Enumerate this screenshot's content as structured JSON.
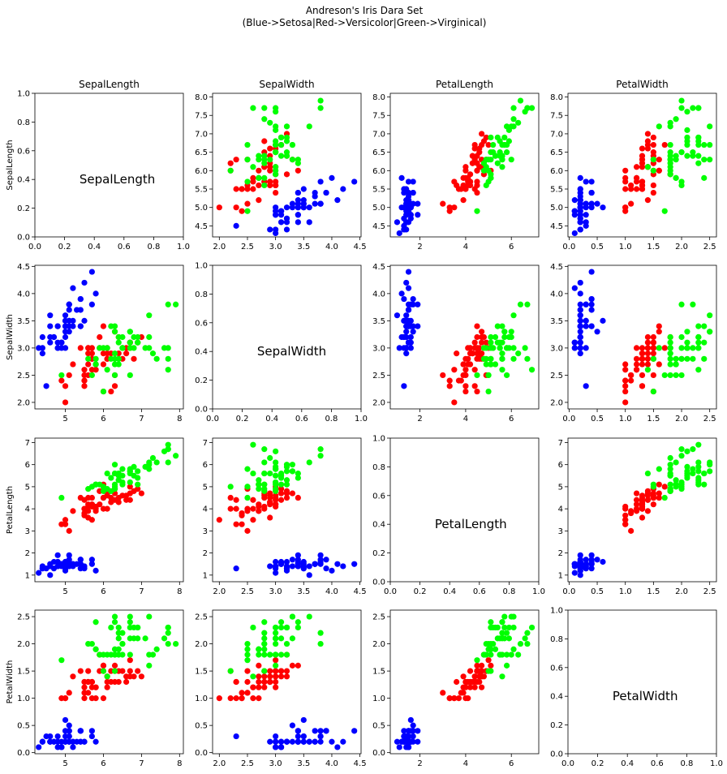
{
  "chart_data": {
    "type": "scatter",
    "layout": "pairplot",
    "title": [
      "Andreson's Iris Dara Set",
      "(Blue->Setosa|Red->Versicolor|Green->Virginical)"
    ],
    "features": [
      "SepalLength",
      "SepalWidth",
      "PetalLength",
      "PetalWidth"
    ],
    "colors": {
      "setosa": "#0000ff",
      "versicolor": "#ff0000",
      "virginica": "#00ff00"
    },
    "ranges": {
      "SepalLength": {
        "lim": [
          4.2,
          8.1
        ],
        "ticks": [
          5,
          6,
          7,
          8
        ],
        "labels": [
          "5",
          "6",
          "7",
          "8"
        ]
      },
      "SepalWidth": {
        "lim": [
          1.88,
          4.52
        ],
        "ticks": [
          2.0,
          2.5,
          3.0,
          3.5,
          4.0,
          4.5
        ],
        "labels": [
          "2.0",
          "2.5",
          "3.0",
          "3.5",
          "4.0",
          "4.5"
        ]
      },
      "PetalLength": {
        "lim": [
          0.7,
          7.2
        ],
        "ticks": [
          2,
          4,
          6
        ],
        "labels": [
          "2",
          "4",
          "6"
        ]
      },
      "PetalWidth": {
        "lim": [
          -0.02,
          2.62
        ],
        "ticks": [
          0.0,
          0.5,
          1.0,
          1.5,
          2.0,
          2.5
        ],
        "labels": [
          "0.0",
          "0.5",
          "1.0",
          "1.5",
          "2.0",
          "2.5"
        ]
      }
    },
    "row_ranges": {
      "SepalLength": {
        "lim": [
          4.2,
          8.1
        ],
        "ticks": [
          4.5,
          5.0,
          5.5,
          6.0,
          6.5,
          7.0,
          7.5,
          8.0
        ],
        "labels": [
          "4.5",
          "5.0",
          "5.5",
          "6.0",
          "6.5",
          "7.0",
          "7.5",
          "8.0"
        ]
      },
      "SepalWidth": {
        "lim": [
          1.88,
          4.52
        ],
        "ticks": [
          2.0,
          2.5,
          3.0,
          3.5,
          4.0,
          4.5
        ],
        "labels": [
          "2.0",
          "2.5",
          "3.0",
          "3.5",
          "4.0",
          "4.5"
        ]
      },
      "PetalLength": {
        "lim": [
          0.7,
          7.2
        ],
        "ticks": [
          1,
          2,
          3,
          4,
          5,
          6,
          7
        ],
        "labels": [
          "1",
          "2",
          "3",
          "4",
          "5",
          "6",
          "7"
        ]
      },
      "PetalWidth": {
        "lim": [
          -0.02,
          2.62
        ],
        "ticks": [
          0.0,
          0.5,
          1.0,
          1.5,
          2.0,
          2.5
        ],
        "labels": [
          "0.0",
          "0.5",
          "1.0",
          "1.5",
          "2.0",
          "2.5"
        ]
      }
    },
    "diagonal_ticks": {
      "values": [
        0.0,
        0.2,
        0.4,
        0.6,
        0.8,
        1.0
      ],
      "labels": [
        "0.0",
        "0.2",
        "0.4",
        "0.6",
        "0.8",
        "1.0"
      ]
    },
    "samples": {
      "setosa": [
        [
          5.1,
          3.5,
          1.4,
          0.2
        ],
        [
          4.9,
          3.0,
          1.4,
          0.2
        ],
        [
          4.7,
          3.2,
          1.3,
          0.2
        ],
        [
          4.6,
          3.1,
          1.5,
          0.2
        ],
        [
          5.0,
          3.6,
          1.4,
          0.2
        ],
        [
          5.4,
          3.9,
          1.7,
          0.4
        ],
        [
          4.6,
          3.4,
          1.4,
          0.3
        ],
        [
          5.0,
          3.4,
          1.5,
          0.2
        ],
        [
          4.4,
          2.9,
          1.4,
          0.2
        ],
        [
          4.9,
          3.1,
          1.5,
          0.1
        ],
        [
          5.4,
          3.7,
          1.5,
          0.2
        ],
        [
          4.8,
          3.4,
          1.6,
          0.2
        ],
        [
          4.8,
          3.0,
          1.4,
          0.1
        ],
        [
          4.3,
          3.0,
          1.1,
          0.1
        ],
        [
          5.8,
          4.0,
          1.2,
          0.2
        ],
        [
          5.7,
          4.4,
          1.5,
          0.4
        ],
        [
          5.4,
          3.9,
          1.3,
          0.4
        ],
        [
          5.1,
          3.5,
          1.4,
          0.3
        ],
        [
          5.7,
          3.8,
          1.7,
          0.3
        ],
        [
          5.1,
          3.8,
          1.5,
          0.3
        ],
        [
          5.4,
          3.4,
          1.7,
          0.2
        ],
        [
          5.1,
          3.7,
          1.5,
          0.4
        ],
        [
          4.6,
          3.6,
          1.0,
          0.2
        ],
        [
          5.1,
          3.3,
          1.7,
          0.5
        ],
        [
          4.8,
          3.4,
          1.9,
          0.2
        ],
        [
          5.0,
          3.0,
          1.6,
          0.2
        ],
        [
          5.0,
          3.4,
          1.6,
          0.4
        ],
        [
          5.2,
          3.5,
          1.5,
          0.2
        ],
        [
          5.2,
          3.4,
          1.4,
          0.2
        ],
        [
          4.7,
          3.2,
          1.6,
          0.2
        ],
        [
          4.8,
          3.1,
          1.6,
          0.2
        ],
        [
          5.4,
          3.4,
          1.5,
          0.4
        ],
        [
          5.2,
          4.1,
          1.5,
          0.1
        ],
        [
          5.5,
          4.2,
          1.4,
          0.2
        ],
        [
          4.9,
          3.1,
          1.5,
          0.1
        ],
        [
          5.0,
          3.2,
          1.2,
          0.2
        ],
        [
          5.5,
          3.5,
          1.3,
          0.2
        ],
        [
          4.9,
          3.1,
          1.5,
          0.1
        ],
        [
          4.4,
          3.0,
          1.3,
          0.2
        ],
        [
          5.1,
          3.4,
          1.5,
          0.2
        ],
        [
          5.0,
          3.5,
          1.3,
          0.3
        ],
        [
          4.5,
          2.3,
          1.3,
          0.3
        ],
        [
          4.4,
          3.2,
          1.3,
          0.2
        ],
        [
          5.0,
          3.5,
          1.6,
          0.6
        ],
        [
          5.1,
          3.8,
          1.9,
          0.4
        ],
        [
          4.8,
          3.0,
          1.4,
          0.3
        ],
        [
          5.1,
          3.8,
          1.6,
          0.2
        ],
        [
          4.6,
          3.2,
          1.4,
          0.2
        ],
        [
          5.3,
          3.7,
          1.5,
          0.2
        ],
        [
          5.0,
          3.3,
          1.4,
          0.2
        ]
      ],
      "versicolor": [
        [
          7.0,
          3.2,
          4.7,
          1.4
        ],
        [
          6.4,
          3.2,
          4.5,
          1.5
        ],
        [
          6.9,
          3.1,
          4.9,
          1.5
        ],
        [
          5.5,
          2.3,
          4.0,
          1.3
        ],
        [
          6.5,
          2.8,
          4.6,
          1.5
        ],
        [
          5.7,
          2.8,
          4.5,
          1.3
        ],
        [
          6.3,
          3.3,
          4.7,
          1.6
        ],
        [
          4.9,
          2.4,
          3.3,
          1.0
        ],
        [
          6.6,
          2.9,
          4.6,
          1.3
        ],
        [
          5.2,
          2.7,
          3.9,
          1.4
        ],
        [
          5.0,
          2.0,
          3.5,
          1.0
        ],
        [
          5.9,
          3.0,
          4.2,
          1.5
        ],
        [
          6.0,
          2.2,
          4.0,
          1.0
        ],
        [
          6.1,
          2.9,
          4.7,
          1.4
        ],
        [
          5.6,
          2.9,
          3.6,
          1.3
        ],
        [
          6.7,
          3.1,
          4.4,
          1.4
        ],
        [
          5.6,
          3.0,
          4.5,
          1.5
        ],
        [
          5.8,
          2.7,
          4.1,
          1.0
        ],
        [
          6.2,
          2.2,
          4.5,
          1.5
        ],
        [
          5.6,
          2.5,
          3.9,
          1.1
        ],
        [
          5.9,
          3.2,
          4.8,
          1.8
        ],
        [
          6.1,
          2.8,
          4.0,
          1.3
        ],
        [
          6.3,
          2.5,
          4.9,
          1.5
        ],
        [
          6.1,
          2.8,
          4.7,
          1.2
        ],
        [
          6.4,
          2.9,
          4.3,
          1.3
        ],
        [
          6.6,
          3.0,
          4.4,
          1.4
        ],
        [
          6.8,
          2.8,
          4.8,
          1.4
        ],
        [
          6.7,
          3.0,
          5.0,
          1.7
        ],
        [
          6.0,
          2.9,
          4.5,
          1.5
        ],
        [
          5.7,
          2.6,
          3.5,
          1.0
        ],
        [
          5.5,
          2.4,
          3.8,
          1.1
        ],
        [
          5.5,
          2.4,
          3.7,
          1.0
        ],
        [
          5.8,
          2.7,
          3.9,
          1.2
        ],
        [
          6.0,
          2.7,
          5.1,
          1.6
        ],
        [
          5.4,
          3.0,
          4.5,
          1.5
        ],
        [
          6.0,
          3.4,
          4.5,
          1.6
        ],
        [
          6.7,
          3.1,
          4.7,
          1.5
        ],
        [
          6.3,
          2.3,
          4.4,
          1.3
        ],
        [
          5.6,
          3.0,
          4.1,
          1.3
        ],
        [
          5.5,
          2.5,
          4.0,
          1.3
        ],
        [
          5.5,
          2.6,
          4.4,
          1.2
        ],
        [
          6.1,
          3.0,
          4.6,
          1.4
        ],
        [
          5.8,
          2.6,
          4.0,
          1.2
        ],
        [
          5.0,
          2.3,
          3.3,
          1.0
        ],
        [
          5.6,
          2.7,
          4.2,
          1.3
        ],
        [
          5.7,
          3.0,
          4.2,
          1.2
        ],
        [
          5.7,
          2.9,
          4.2,
          1.3
        ],
        [
          6.2,
          2.9,
          4.3,
          1.3
        ],
        [
          5.1,
          2.5,
          3.0,
          1.1
        ],
        [
          5.7,
          2.8,
          4.1,
          1.3
        ]
      ],
      "virginica": [
        [
          6.3,
          3.3,
          6.0,
          2.5
        ],
        [
          5.8,
          2.7,
          5.1,
          1.9
        ],
        [
          7.1,
          3.0,
          5.9,
          2.1
        ],
        [
          6.3,
          2.9,
          5.6,
          1.8
        ],
        [
          6.5,
          3.0,
          5.8,
          2.2
        ],
        [
          7.6,
          3.0,
          6.6,
          2.1
        ],
        [
          4.9,
          2.5,
          4.5,
          1.7
        ],
        [
          7.3,
          2.9,
          6.3,
          1.8
        ],
        [
          6.7,
          2.5,
          5.8,
          1.8
        ],
        [
          7.2,
          3.6,
          6.1,
          2.5
        ],
        [
          6.5,
          3.2,
          5.1,
          2.0
        ],
        [
          6.4,
          2.7,
          5.3,
          1.9
        ],
        [
          6.8,
          3.0,
          5.5,
          2.1
        ],
        [
          5.7,
          2.5,
          5.0,
          2.0
        ],
        [
          5.8,
          2.8,
          5.1,
          2.4
        ],
        [
          6.4,
          3.2,
          5.3,
          2.3
        ],
        [
          6.5,
          3.0,
          5.5,
          1.8
        ],
        [
          7.7,
          3.8,
          6.7,
          2.2
        ],
        [
          7.7,
          2.6,
          6.9,
          2.3
        ],
        [
          6.0,
          2.2,
          5.0,
          1.5
        ],
        [
          6.9,
          3.2,
          5.7,
          2.3
        ],
        [
          5.6,
          2.8,
          4.9,
          2.0
        ],
        [
          7.7,
          2.8,
          6.7,
          2.0
        ],
        [
          6.3,
          2.7,
          4.9,
          1.8
        ],
        [
          6.7,
          3.3,
          5.7,
          2.1
        ],
        [
          7.2,
          3.2,
          6.0,
          1.8
        ],
        [
          6.2,
          2.8,
          4.8,
          1.8
        ],
        [
          6.1,
          3.0,
          4.9,
          1.8
        ],
        [
          6.4,
          2.8,
          5.6,
          2.1
        ],
        [
          7.2,
          3.0,
          5.8,
          1.6
        ],
        [
          7.4,
          2.8,
          6.1,
          1.9
        ],
        [
          7.9,
          3.8,
          6.4,
          2.0
        ],
        [
          6.4,
          2.8,
          5.6,
          2.2
        ],
        [
          6.3,
          2.8,
          5.1,
          1.5
        ],
        [
          6.1,
          2.6,
          5.6,
          1.4
        ],
        [
          7.7,
          3.0,
          6.1,
          2.3
        ],
        [
          6.3,
          3.4,
          5.6,
          2.4
        ],
        [
          6.4,
          3.1,
          5.5,
          1.8
        ],
        [
          6.0,
          3.0,
          4.8,
          1.8
        ],
        [
          6.9,
          3.1,
          5.4,
          2.1
        ],
        [
          6.7,
          3.1,
          5.6,
          2.4
        ],
        [
          6.9,
          3.1,
          5.1,
          2.3
        ],
        [
          5.8,
          2.7,
          5.1,
          1.9
        ],
        [
          6.8,
          3.2,
          5.9,
          2.3
        ],
        [
          6.7,
          3.3,
          5.7,
          2.5
        ],
        [
          6.7,
          3.0,
          5.2,
          2.3
        ],
        [
          6.3,
          2.5,
          5.0,
          1.9
        ],
        [
          6.5,
          3.0,
          5.2,
          2.0
        ],
        [
          6.2,
          3.4,
          5.4,
          2.3
        ],
        [
          5.9,
          3.0,
          5.1,
          1.8
        ]
      ]
    }
  }
}
